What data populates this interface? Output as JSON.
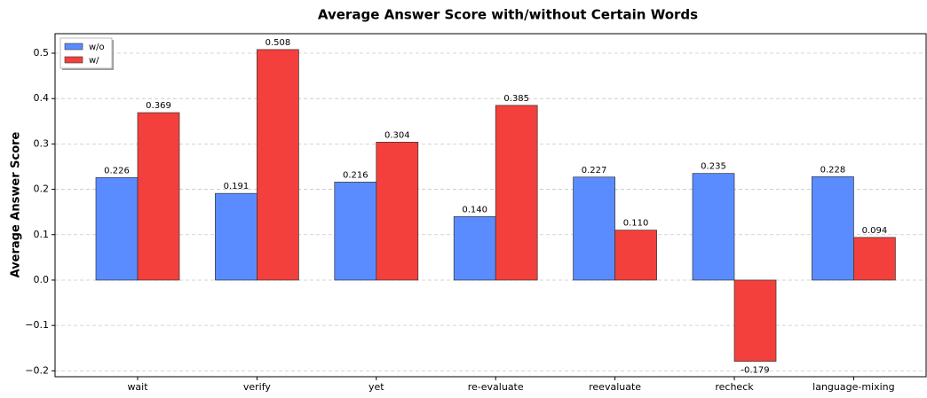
{
  "chart_data": {
    "type": "bar",
    "title": "Average Answer Score with/without Certain Words",
    "ylabel": "Average Answer Score",
    "categories": [
      "wait",
      "verify",
      "yet",
      "re-evaluate",
      "reevaluate",
      "recheck",
      "language-mixing"
    ],
    "series": [
      {
        "name": "w/o",
        "color": "#5b8cff",
        "values": [
          0.226,
          0.191,
          0.216,
          0.14,
          0.227,
          0.235,
          0.228
        ],
        "value_labels": [
          "0.226",
          "0.191",
          "0.216",
          "0.140",
          "0.227",
          "0.235",
          "0.228"
        ]
      },
      {
        "name": "w/",
        "color": "#f4403c",
        "values": [
          0.369,
          0.508,
          0.304,
          0.385,
          0.11,
          -0.179,
          0.094
        ],
        "value_labels": [
          "0.369",
          "0.508",
          "0.304",
          "0.385",
          "0.110",
          "-0.179",
          "0.094"
        ]
      }
    ],
    "ylim": [
      -0.213,
      0.543
    ],
    "yticks": [
      {
        "value": -0.2,
        "label": "−0.2"
      },
      {
        "value": -0.1,
        "label": "−0.1"
      },
      {
        "value": 0,
        "label": "0.0"
      },
      0.1,
      0.2,
      0.3,
      0.4,
      0.5
    ],
    "grid": true,
    "legend": "upper-left"
  }
}
